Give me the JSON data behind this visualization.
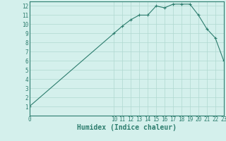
{
  "x": [
    0,
    10,
    11,
    12,
    13,
    14,
    15,
    16,
    17,
    18,
    19,
    20,
    21,
    22,
    23
  ],
  "y": [
    1.0,
    9.0,
    9.8,
    10.5,
    11.0,
    11.0,
    12.0,
    11.8,
    12.2,
    12.2,
    12.2,
    11.0,
    9.5,
    8.5,
    6.0
  ],
  "xlim": [
    0,
    23
  ],
  "ylim": [
    0,
    12.5
  ],
  "yticks": [
    1,
    2,
    3,
    4,
    5,
    6,
    7,
    8,
    9,
    10,
    11,
    12
  ],
  "xticks": [
    0,
    10,
    11,
    12,
    13,
    14,
    15,
    16,
    17,
    18,
    19,
    20,
    21,
    22,
    23
  ],
  "xlabel": "Humidex (Indice chaleur)",
  "line_color": "#2d7d6e",
  "marker": "+",
  "bg_color": "#d4f0ec",
  "grid_color": "#b0d8d0",
  "axis_color": "#2d7d6e",
  "label_color": "#2d7d6e",
  "title": ""
}
